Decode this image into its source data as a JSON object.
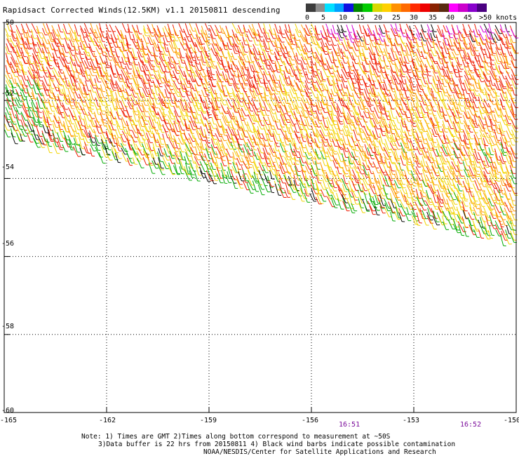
{
  "title": "Rapidsact Corrected Winds(12.5KM) v1.1 20150811 descending",
  "colorbar": {
    "labels": [
      "0",
      "5",
      "10",
      "15",
      "20",
      "25",
      "30",
      "35",
      "40",
      "45",
      ">50 knots"
    ],
    "colors": [
      "#3c3c3c",
      "#8c8c8c",
      "#00e0ff",
      "#00a0ff",
      "#1010e0",
      "#008800",
      "#00cc00",
      "#d8d800",
      "#ffd000",
      "#ff9000",
      "#ff6a00",
      "#ff2a00",
      "#ee0000",
      "#882000",
      "#5a2a10",
      "#ff00ff",
      "#cc00cc",
      "#8800cc",
      "#4a0080"
    ]
  },
  "lat_labels": [
    "-50",
    "-52",
    "-54",
    "-56",
    "-58",
    "-60"
  ],
  "lon_labels": [
    "-165",
    "-162",
    "-159",
    "-156",
    "-153",
    "-150"
  ],
  "times": [
    "16:51",
    "16:52"
  ],
  "notes": [
    "Note: 1) Times are GMT 2)Times along bottom correspond to measurement at ~50S",
    "3)Data buffer is 22 hrs from 20150811 4) Black wind barbs indicate possible contamination",
    "NOAA/NESDIS/Center for Satellite Applications and Research"
  ],
  "wind_colors": {
    "green": "#00aa00",
    "yellow": "#f2d400",
    "orange": "#ff9a00",
    "red": "#ee1a00",
    "magenta": "#d400d4",
    "black": "#000000"
  }
}
